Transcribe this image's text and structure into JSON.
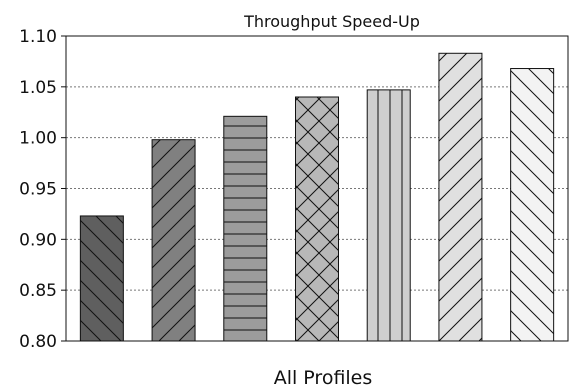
{
  "chart_data": {
    "type": "bar",
    "title": "Throughput Speed-Up",
    "xlabel": "All Profiles",
    "ylabel": "",
    "ylim": [
      0.8,
      1.1
    ],
    "yticks": [
      "0.80",
      "0.85",
      "0.90",
      "0.95",
      "1.00",
      "1.05",
      "1.10"
    ],
    "grid": "horizontal-dotted",
    "values": [
      0.923,
      0.998,
      1.021,
      1.04,
      1.047,
      1.083,
      1.068
    ],
    "bar_fills": [
      "#5f5f5f",
      "#808080",
      "#9c9c9c",
      "#b8b8b8",
      "#cfcfcf",
      "#e0e0e0",
      "#f3f3f3"
    ],
    "bar_hatches": [
      "backslash",
      "slash",
      "horizontal",
      "cross",
      "vertical",
      "slash",
      "backslash"
    ]
  }
}
